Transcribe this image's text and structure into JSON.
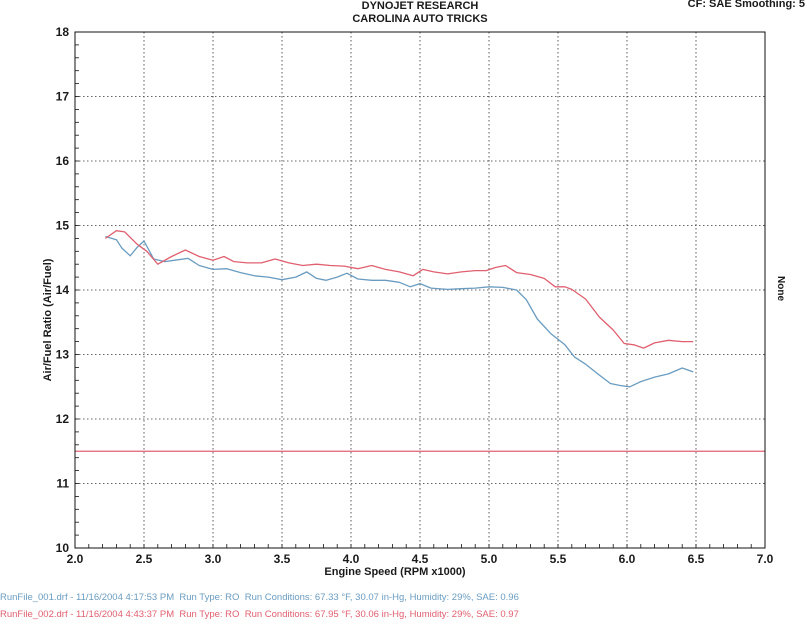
{
  "header": {
    "title_line1": "DYNOJET RESEARCH",
    "title_line2": "CAROLINA AUTO TRICKS",
    "correction": "CF: SAE  Smoothing: 5",
    "side_label": "None"
  },
  "colors": {
    "run1": "#6a9cc0",
    "run2": "#e06070",
    "reference": "#e06070",
    "grid": "#333333",
    "axis": "#111111"
  },
  "chart_data": {
    "type": "line",
    "title": "",
    "xlabel": "Engine Speed (RPM x1000)",
    "ylabel": "Air/Fuel Ratio (Air/Fuel)",
    "xlim": [
      2.0,
      7.0
    ],
    "ylim": [
      10,
      18
    ],
    "x_ticks": [
      "2.0",
      "2.5",
      "3.0",
      "3.5",
      "4.0",
      "4.5",
      "5.0",
      "5.5",
      "6.0",
      "6.5",
      "7.0"
    ],
    "y_ticks": [
      "10",
      "11",
      "12",
      "13",
      "14",
      "15",
      "16",
      "17",
      "18"
    ],
    "grid": true,
    "reference_line": 11.5,
    "series": [
      {
        "key": "run1",
        "values": [
          [
            2.22,
            14.83
          ],
          [
            2.3,
            14.78
          ],
          [
            2.34,
            14.65
          ],
          [
            2.4,
            14.53
          ],
          [
            2.45,
            14.66
          ],
          [
            2.5,
            14.76
          ],
          [
            2.57,
            14.48
          ],
          [
            2.65,
            14.44
          ],
          [
            2.75,
            14.47
          ],
          [
            2.82,
            14.49
          ],
          [
            2.9,
            14.38
          ],
          [
            3.0,
            14.32
          ],
          [
            3.1,
            14.33
          ],
          [
            3.2,
            14.27
          ],
          [
            3.3,
            14.22
          ],
          [
            3.4,
            14.2
          ],
          [
            3.5,
            14.16
          ],
          [
            3.6,
            14.2
          ],
          [
            3.68,
            14.28
          ],
          [
            3.75,
            14.18
          ],
          [
            3.82,
            14.15
          ],
          [
            3.9,
            14.2
          ],
          [
            3.97,
            14.26
          ],
          [
            4.05,
            14.17
          ],
          [
            4.15,
            14.15
          ],
          [
            4.25,
            14.15
          ],
          [
            4.35,
            14.12
          ],
          [
            4.43,
            14.05
          ],
          [
            4.5,
            14.1
          ],
          [
            4.58,
            14.03
          ],
          [
            4.7,
            14.01
          ],
          [
            4.8,
            14.02
          ],
          [
            4.9,
            14.03
          ],
          [
            5.0,
            14.05
          ],
          [
            5.1,
            14.04
          ],
          [
            5.2,
            14.0
          ],
          [
            5.27,
            13.85
          ],
          [
            5.35,
            13.55
          ],
          [
            5.45,
            13.32
          ],
          [
            5.55,
            13.15
          ],
          [
            5.62,
            12.96
          ],
          [
            5.7,
            12.85
          ],
          [
            5.8,
            12.68
          ],
          [
            5.88,
            12.55
          ],
          [
            5.95,
            12.52
          ],
          [
            6.02,
            12.5
          ],
          [
            6.1,
            12.58
          ],
          [
            6.2,
            12.65
          ],
          [
            6.3,
            12.7
          ],
          [
            6.4,
            12.79
          ],
          [
            6.48,
            12.73
          ]
        ]
      },
      {
        "key": "run2",
        "values": [
          [
            2.22,
            14.8
          ],
          [
            2.3,
            14.92
          ],
          [
            2.36,
            14.9
          ],
          [
            2.45,
            14.71
          ],
          [
            2.52,
            14.6
          ],
          [
            2.6,
            14.4
          ],
          [
            2.7,
            14.52
          ],
          [
            2.8,
            14.62
          ],
          [
            2.9,
            14.52
          ],
          [
            3.0,
            14.46
          ],
          [
            3.08,
            14.52
          ],
          [
            3.15,
            14.44
          ],
          [
            3.25,
            14.42
          ],
          [
            3.35,
            14.42
          ],
          [
            3.45,
            14.48
          ],
          [
            3.55,
            14.42
          ],
          [
            3.65,
            14.38
          ],
          [
            3.75,
            14.4
          ],
          [
            3.85,
            14.38
          ],
          [
            3.95,
            14.37
          ],
          [
            4.05,
            14.33
          ],
          [
            4.15,
            14.38
          ],
          [
            4.25,
            14.32
          ],
          [
            4.35,
            14.28
          ],
          [
            4.45,
            14.22
          ],
          [
            4.52,
            14.32
          ],
          [
            4.6,
            14.28
          ],
          [
            4.7,
            14.25
          ],
          [
            4.8,
            14.28
          ],
          [
            4.9,
            14.3
          ],
          [
            4.98,
            14.3
          ],
          [
            5.05,
            14.35
          ],
          [
            5.12,
            14.38
          ],
          [
            5.2,
            14.27
          ],
          [
            5.3,
            14.24
          ],
          [
            5.4,
            14.18
          ],
          [
            5.48,
            14.05
          ],
          [
            5.55,
            14.05
          ],
          [
            5.6,
            14.01
          ],
          [
            5.7,
            13.86
          ],
          [
            5.8,
            13.58
          ],
          [
            5.9,
            13.38
          ],
          [
            5.98,
            13.17
          ],
          [
            6.05,
            13.15
          ],
          [
            6.12,
            13.1
          ],
          [
            6.2,
            13.18
          ],
          [
            6.3,
            13.22
          ],
          [
            6.4,
            13.2
          ],
          [
            6.48,
            13.2
          ]
        ]
      }
    ]
  },
  "footer": {
    "run1": {
      "file": "RunFile_001.drf - 11/16/2004 4:17:53 PM",
      "run_type": "Run Type: RO",
      "conditions": "Run Conditions: 67.33 °F, 30.07 in-Hg,  Humidity:  29%, SAE: 0.96"
    },
    "run2": {
      "file": "RunFile_002.drf - 11/16/2004 4:43:37 PM",
      "run_type": "Run Type: RO",
      "conditions": "Run Conditions: 67.95 °F, 30.06 in-Hg,  Humidity:  29%,  SAE: 0.97"
    }
  }
}
